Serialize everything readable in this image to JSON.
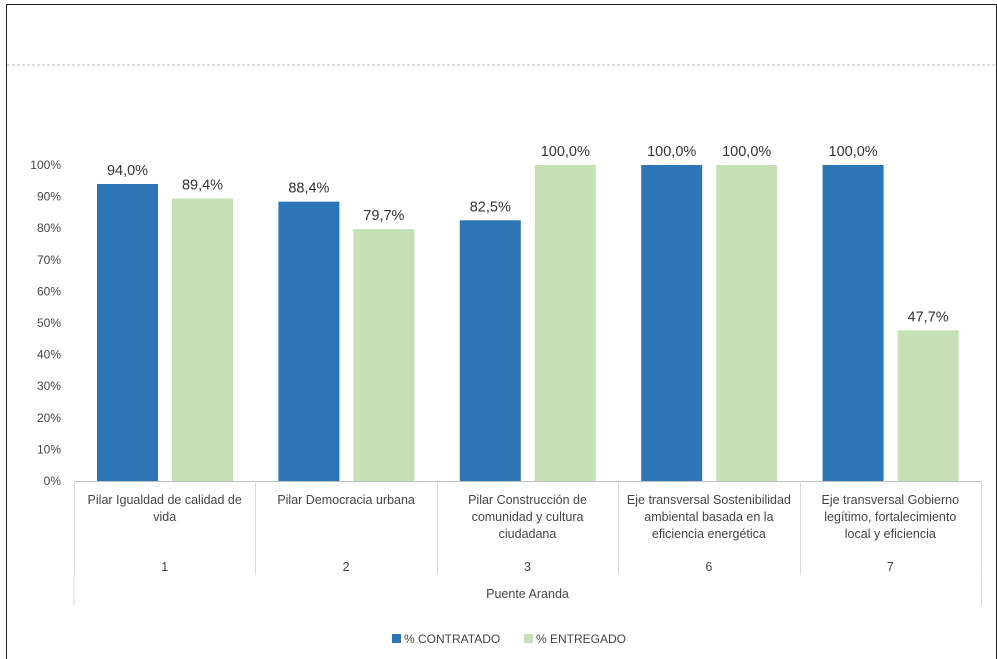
{
  "chart_data": {
    "type": "bar",
    "group_label": "Puente Aranda",
    "categories": [
      {
        "code": "1",
        "lines": [
          "Pilar Igualdad de calidad de",
          "vida"
        ]
      },
      {
        "code": "2",
        "lines": [
          "Pilar Democracia urbana"
        ]
      },
      {
        "code": "3",
        "lines": [
          "Pilar Construcción de",
          "comunidad y cultura",
          "ciudadana"
        ]
      },
      {
        "code": "6",
        "lines": [
          "Eje transversal Sostenibilidad",
          "ambiental basada en la",
          "eficiencia energética"
        ]
      },
      {
        "code": "7",
        "lines": [
          "Eje transversal Gobierno",
          "legítimo, fortalecimiento",
          "local y eficiencia"
        ]
      }
    ],
    "series": [
      {
        "name": "% CONTRATADO",
        "color": "#2E75B6",
        "values": [
          94.0,
          88.4,
          82.5,
          100.0,
          100.0
        ],
        "labels": [
          "94,0%",
          "88,4%",
          "82,5%",
          "100,0%",
          "100,0%"
        ]
      },
      {
        "name": "% ENTREGADO",
        "color": "#C5E0B4",
        "values": [
          89.4,
          79.7,
          100.0,
          100.0,
          47.7
        ],
        "labels": [
          "89,4%",
          "79,7%",
          "100,0%",
          "100,0%",
          "47,7%"
        ]
      }
    ],
    "y_ticks": [
      "0%",
      "10%",
      "20%",
      "30%",
      "40%",
      "50%",
      "60%",
      "70%",
      "80%",
      "90%",
      "100%"
    ],
    "ylim": [
      0,
      100
    ],
    "legend_position": "bottom",
    "grid": false
  }
}
